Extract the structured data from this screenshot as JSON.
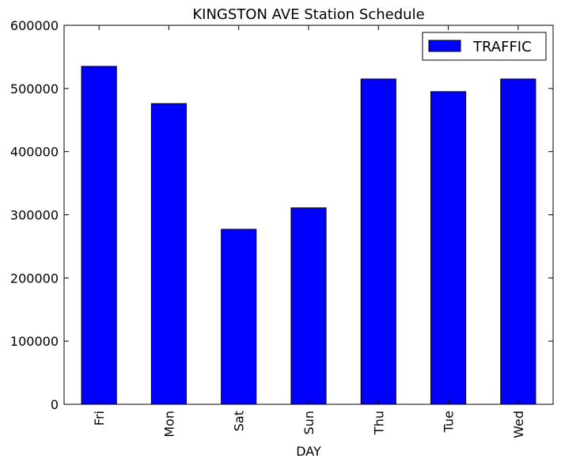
{
  "chart_data": {
    "type": "bar",
    "title": "KINGSTON AVE Station Schedule",
    "xlabel": "DAY",
    "ylabel": "",
    "categories": [
      "Fri",
      "Mon",
      "Sat",
      "Sun",
      "Thu",
      "Tue",
      "Wed"
    ],
    "series": [
      {
        "name": "TRAFFIC",
        "values": [
          535000,
          476000,
          277000,
          311000,
          515000,
          495000,
          515000
        ],
        "color": "#0000ff"
      }
    ],
    "ylim": [
      0,
      600000
    ],
    "yticks": [
      "0",
      "100000",
      "200000",
      "300000",
      "400000",
      "500000",
      "600000"
    ],
    "legend_position": "top-right",
    "grid": false
  }
}
